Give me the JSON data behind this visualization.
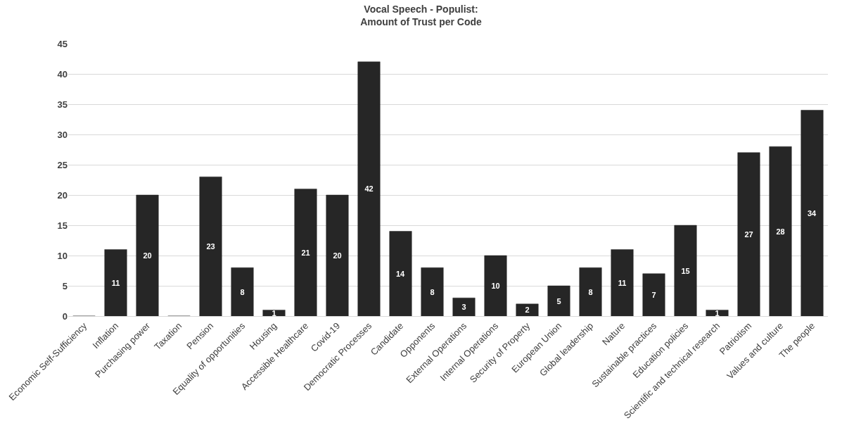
{
  "chart_data": {
    "type": "bar",
    "title": "Vocal Speech - Populist:\nAmount of Trust per Code",
    "categories": [
      "Economic Self-Sufficiency",
      "Inflation",
      "Purchasing power",
      "Taxation",
      "Pension",
      "Equality of opportunities",
      "Housing",
      "Accessible Healthcare",
      "Covid-19",
      "Democratic Processes",
      "Candidate",
      "Opponents",
      "External Operations",
      "Internal Operations",
      "Security of Property",
      "European Union",
      "Global leadership",
      "Nature",
      "Sustainable practices",
      "Education policies",
      "Scientific and technical research",
      "Patriotism",
      "Values and culture",
      "The people"
    ],
    "values": [
      0,
      11,
      20,
      0,
      23,
      8,
      1,
      21,
      20,
      42,
      14,
      8,
      3,
      10,
      2,
      5,
      8,
      11,
      7,
      15,
      1,
      27,
      28,
      34
    ],
    "value_labels": [
      null,
      "11",
      "20",
      null,
      "23",
      "8",
      "1",
      "21",
      "20",
      "42",
      "14",
      "8",
      "3",
      "10",
      "2",
      "5",
      "8",
      "11",
      "7",
      "15",
      "1",
      "27",
      "28",
      "34"
    ],
    "color": "#262626",
    "ylim": [
      0,
      45
    ],
    "yticks": [
      0,
      5,
      10,
      15,
      20,
      25,
      30,
      35,
      40,
      45
    ],
    "grid": "y"
  }
}
